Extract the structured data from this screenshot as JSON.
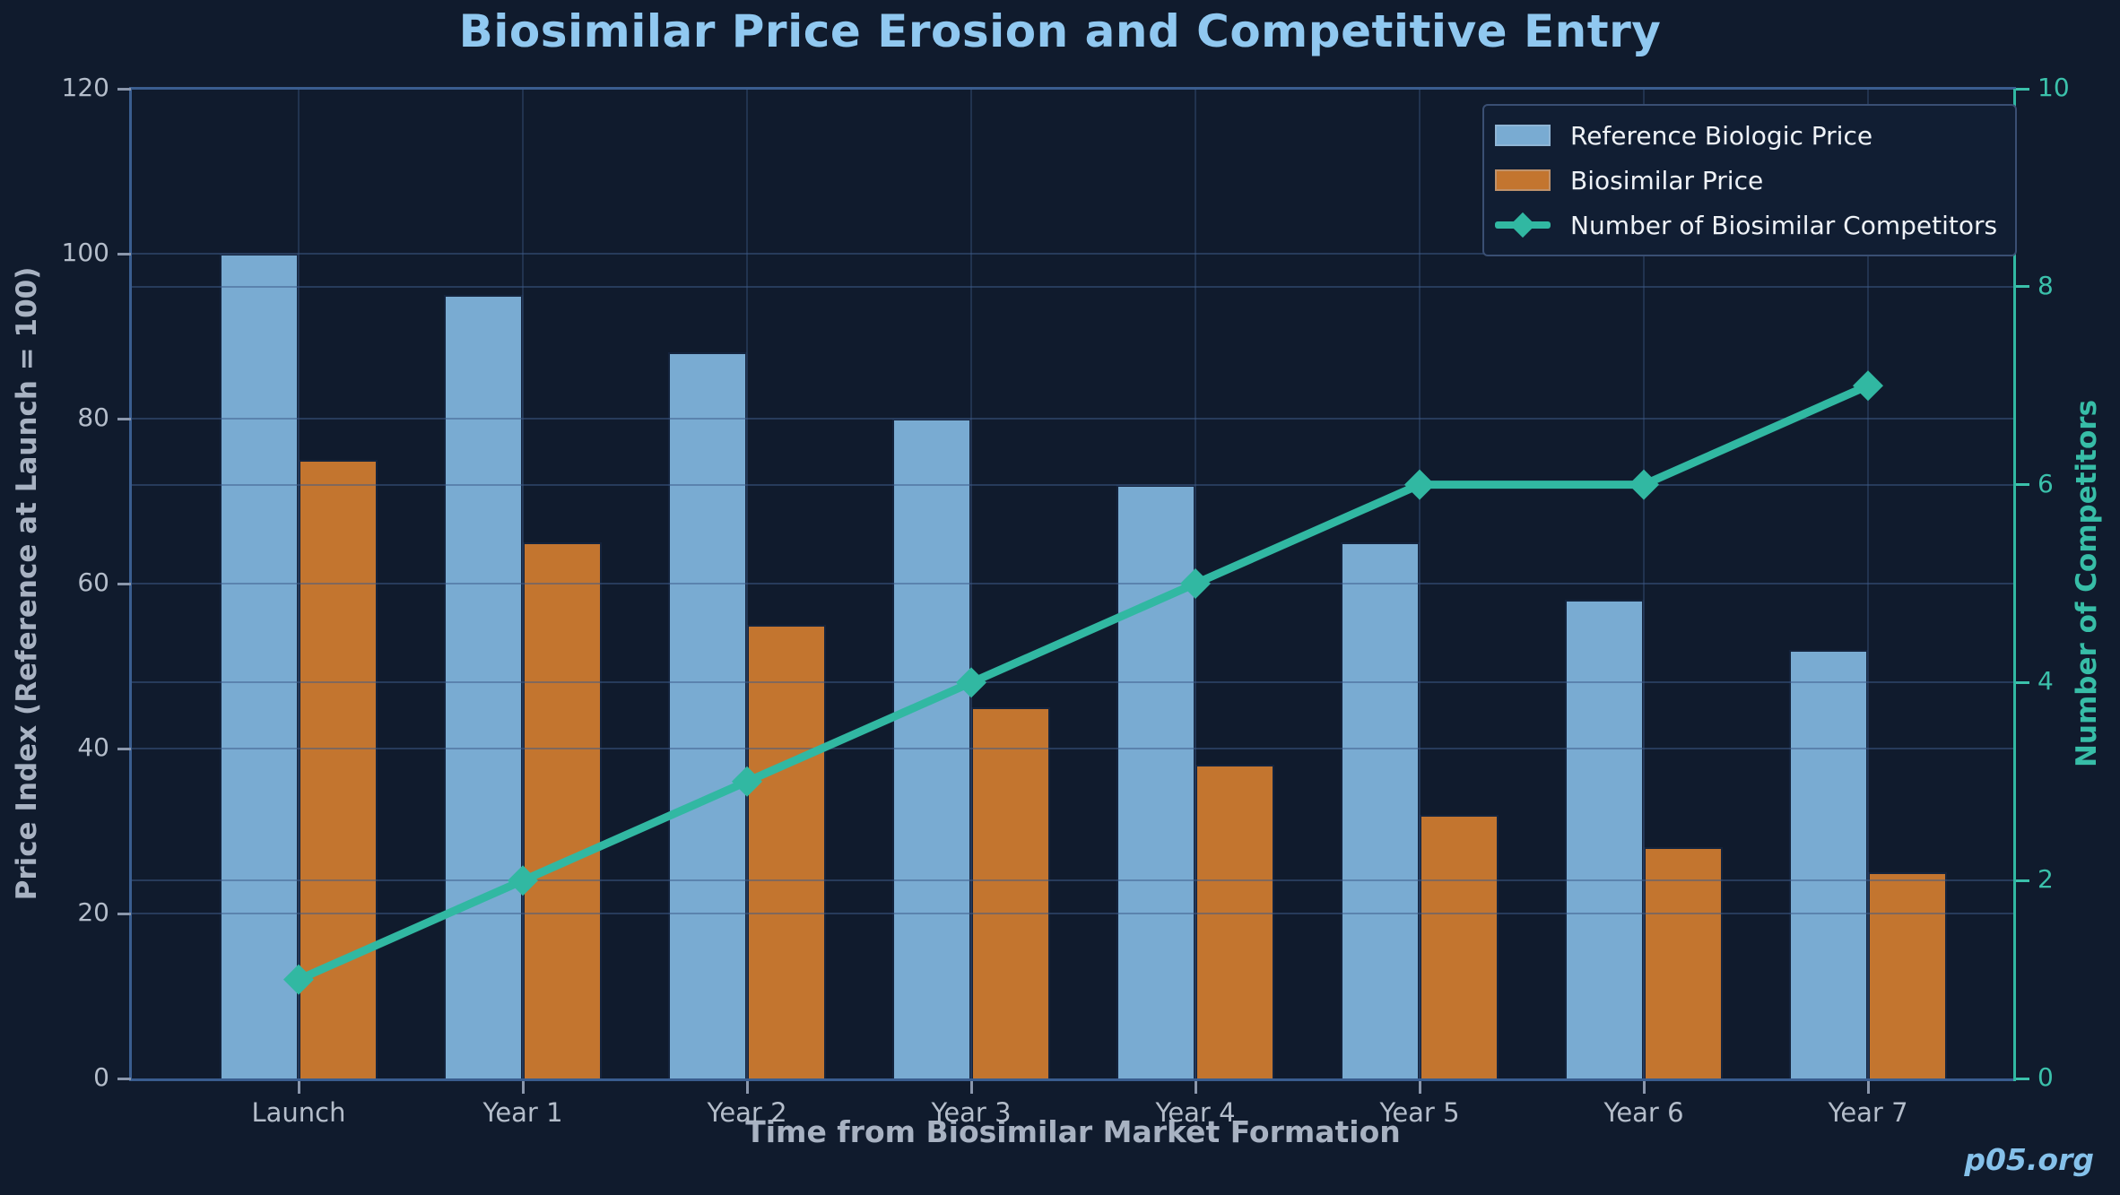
{
  "watermark": "p05.org",
  "chart_data": {
    "type": "bar",
    "subtype": "grouped-bars-with-line",
    "title": "Biosimilar Price Erosion and Competitive Entry",
    "categories": [
      "Launch",
      "Year 1",
      "Year 2",
      "Year 3",
      "Year 4",
      "Year 5",
      "Year 6",
      "Year 7"
    ],
    "bar_series": [
      {
        "name": "Reference Biologic Price",
        "axis": "left",
        "color": "#79abd2",
        "values": [
          100,
          95,
          88,
          80,
          72,
          65,
          58,
          52
        ]
      },
      {
        "name": "Biosimilar Price",
        "axis": "left",
        "color": "#c3752f",
        "values": [
          75,
          65,
          55,
          45,
          38,
          32,
          28,
          25
        ]
      }
    ],
    "line_series": [
      {
        "name": "Number of Biosimilar Competitors",
        "axis": "right",
        "color": "#31b8a2",
        "marker": "diamond",
        "values": [
          1,
          2,
          3,
          4,
          5,
          6,
          6,
          7
        ]
      }
    ],
    "x_axis": {
      "label": "Time from Biosimilar Market Formation"
    },
    "left_axis": {
      "label": "Price Index (Reference at Launch = 100)",
      "ticks": [
        0,
        20,
        40,
        60,
        80,
        100,
        120
      ],
      "range": [
        0,
        120
      ]
    },
    "right_axis": {
      "label": "Number of Competitors",
      "ticks": [
        0,
        2,
        4,
        6,
        8,
        10
      ],
      "range": [
        0,
        10
      ]
    },
    "legend_position": "upper right",
    "grid": true,
    "colors": {
      "background": "#101b2d",
      "title_text": "#90c8f0",
      "tick_text": "#b4bdca",
      "axis_title_text": "#a8b2c2",
      "right_axis_text": "#3bc1ab",
      "left_spine": "#3a5d8f",
      "right_spine": "#31b8a2",
      "legend_text": "#eef2f7"
    }
  }
}
